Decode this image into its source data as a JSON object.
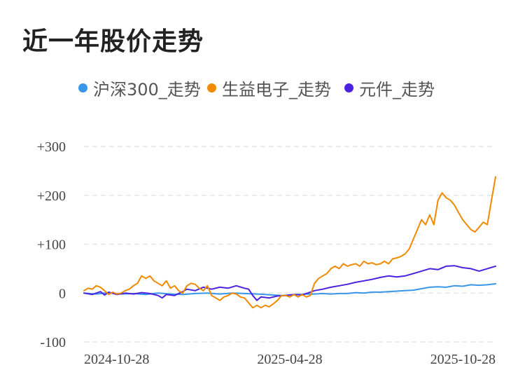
{
  "title": "近一年股价走势",
  "colors": {
    "grid": "#e6e6e6",
    "series_0": "#3a96e8",
    "series_1": "#f08a00",
    "series_2": "#4b22e0"
  },
  "chart_data": {
    "type": "line",
    "title": "近一年股价走势",
    "xlabel": "",
    "ylabel": "",
    "grid": true,
    "legend_position": "top-center",
    "ylim": [
      -100,
      300
    ],
    "xlim": [
      0,
      100
    ],
    "y_ticks": [
      {
        "value": 300,
        "label": "+300"
      },
      {
        "value": 200,
        "label": "+200"
      },
      {
        "value": 100,
        "label": "+100"
      },
      {
        "value": 0,
        "label": "0"
      },
      {
        "value": -100,
        "label": "-100"
      }
    ],
    "x_ticks": [
      {
        "value": 0,
        "label": "2024-10-28"
      },
      {
        "value": 50,
        "label": "2025-04-28"
      },
      {
        "value": 100,
        "label": "2025-10-28"
      }
    ],
    "series": [
      {
        "name": "沪深300_走势",
        "color": "#3a96e8",
        "points": [
          [
            0,
            0
          ],
          [
            3,
            -2
          ],
          [
            6,
            1
          ],
          [
            9,
            -2
          ],
          [
            12,
            -1
          ],
          [
            15,
            -3
          ],
          [
            18,
            0
          ],
          [
            21,
            -2
          ],
          [
            24,
            -3
          ],
          [
            27,
            -1
          ],
          [
            30,
            0
          ],
          [
            33,
            -2
          ],
          [
            36,
            0
          ],
          [
            39,
            -1
          ],
          [
            42,
            -2
          ],
          [
            44,
            -3
          ],
          [
            46,
            -4
          ],
          [
            48,
            -5
          ],
          [
            50,
            -4
          ],
          [
            52,
            -3
          ],
          [
            54,
            -2
          ],
          [
            56,
            -2
          ],
          [
            58,
            -1
          ],
          [
            60,
            -2
          ],
          [
            62,
            -1
          ],
          [
            64,
            -1
          ],
          [
            66,
            1
          ],
          [
            68,
            0
          ],
          [
            70,
            2
          ],
          [
            72,
            2
          ],
          [
            74,
            3
          ],
          [
            76,
            4
          ],
          [
            78,
            5
          ],
          [
            80,
            6
          ],
          [
            82,
            9
          ],
          [
            84,
            12
          ],
          [
            86,
            13
          ],
          [
            88,
            12
          ],
          [
            90,
            15
          ],
          [
            92,
            14
          ],
          [
            94,
            17
          ],
          [
            96,
            16
          ],
          [
            98,
            17
          ],
          [
            100,
            19
          ]
        ]
      },
      {
        "name": "生益电子_走势",
        "color": "#f08a00",
        "points": [
          [
            0,
            5
          ],
          [
            1,
            10
          ],
          [
            2,
            8
          ],
          [
            3,
            15
          ],
          [
            4,
            12
          ],
          [
            5,
            5
          ],
          [
            6,
            -3
          ],
          [
            7,
            2
          ],
          [
            8,
            -2
          ],
          [
            9,
            0
          ],
          [
            10,
            5
          ],
          [
            11,
            8
          ],
          [
            12,
            15
          ],
          [
            13,
            20
          ],
          [
            14,
            35
          ],
          [
            15,
            30
          ],
          [
            16,
            35
          ],
          [
            17,
            25
          ],
          [
            18,
            20
          ],
          [
            19,
            15
          ],
          [
            20,
            25
          ],
          [
            21,
            10
          ],
          [
            22,
            15
          ],
          [
            23,
            5
          ],
          [
            24,
            0
          ],
          [
            25,
            15
          ],
          [
            26,
            20
          ],
          [
            27,
            18
          ],
          [
            28,
            10
          ],
          [
            29,
            5
          ],
          [
            30,
            15
          ],
          [
            31,
            -5
          ],
          [
            32,
            -10
          ],
          [
            33,
            -15
          ],
          [
            34,
            -8
          ],
          [
            35,
            -5
          ],
          [
            36,
            0
          ],
          [
            37,
            -2
          ],
          [
            38,
            -8
          ],
          [
            39,
            -10
          ],
          [
            40,
            -20
          ],
          [
            41,
            -30
          ],
          [
            42,
            -25
          ],
          [
            43,
            -30
          ],
          [
            44,
            -25
          ],
          [
            45,
            -28
          ],
          [
            46,
            -22
          ],
          [
            47,
            -15
          ],
          [
            48,
            -5
          ],
          [
            49,
            -5
          ],
          [
            50,
            -8
          ],
          [
            51,
            -3
          ],
          [
            52,
            -8
          ],
          [
            53,
            -3
          ],
          [
            54,
            -8
          ],
          [
            55,
            -5
          ],
          [
            56,
            20
          ],
          [
            57,
            30
          ],
          [
            58,
            35
          ],
          [
            59,
            40
          ],
          [
            60,
            50
          ],
          [
            61,
            55
          ],
          [
            62,
            50
          ],
          [
            63,
            60
          ],
          [
            64,
            55
          ],
          [
            65,
            58
          ],
          [
            66,
            60
          ],
          [
            67,
            55
          ],
          [
            68,
            65
          ],
          [
            69,
            60
          ],
          [
            70,
            62
          ],
          [
            71,
            58
          ],
          [
            72,
            60
          ],
          [
            73,
            65
          ],
          [
            74,
            60
          ],
          [
            75,
            70
          ],
          [
            76,
            72
          ],
          [
            77,
            75
          ],
          [
            78,
            80
          ],
          [
            79,
            90
          ],
          [
            80,
            110
          ],
          [
            81,
            130
          ],
          [
            82,
            150
          ],
          [
            83,
            140
          ],
          [
            84,
            160
          ],
          [
            85,
            140
          ],
          [
            86,
            190
          ],
          [
            87,
            205
          ],
          [
            88,
            195
          ],
          [
            89,
            190
          ],
          [
            90,
            180
          ],
          [
            91,
            165
          ],
          [
            92,
            150
          ],
          [
            93,
            140
          ],
          [
            94,
            130
          ],
          [
            95,
            125
          ],
          [
            96,
            135
          ],
          [
            97,
            145
          ],
          [
            98,
            140
          ],
          [
            99,
            190
          ],
          [
            100,
            238
          ]
        ]
      },
      {
        "name": "元件_走势",
        "color": "#4b22e0",
        "points": [
          [
            0,
            0
          ],
          [
            2,
            -3
          ],
          [
            4,
            3
          ],
          [
            5,
            -4
          ],
          [
            6,
            2
          ],
          [
            8,
            -3
          ],
          [
            10,
            0
          ],
          [
            12,
            -2
          ],
          [
            14,
            1
          ],
          [
            16,
            -1
          ],
          [
            18,
            -5
          ],
          [
            19,
            -10
          ],
          [
            20,
            -3
          ],
          [
            22,
            -5
          ],
          [
            24,
            3
          ],
          [
            25,
            8
          ],
          [
            27,
            5
          ],
          [
            29,
            12
          ],
          [
            31,
            8
          ],
          [
            33,
            12
          ],
          [
            35,
            10
          ],
          [
            37,
            15
          ],
          [
            39,
            10
          ],
          [
            40,
            8
          ],
          [
            41,
            -5
          ],
          [
            42,
            -15
          ],
          [
            43,
            -8
          ],
          [
            45,
            -10
          ],
          [
            47,
            -6
          ],
          [
            49,
            -5
          ],
          [
            51,
            -3
          ],
          [
            53,
            -4
          ],
          [
            54,
            -1
          ],
          [
            56,
            5
          ],
          [
            58,
            8
          ],
          [
            60,
            12
          ],
          [
            62,
            15
          ],
          [
            64,
            18
          ],
          [
            66,
            22
          ],
          [
            68,
            25
          ],
          [
            70,
            28
          ],
          [
            72,
            32
          ],
          [
            74,
            35
          ],
          [
            76,
            33
          ],
          [
            78,
            35
          ],
          [
            80,
            40
          ],
          [
            82,
            45
          ],
          [
            84,
            50
          ],
          [
            86,
            48
          ],
          [
            88,
            55
          ],
          [
            90,
            56
          ],
          [
            92,
            52
          ],
          [
            94,
            50
          ],
          [
            96,
            45
          ],
          [
            98,
            50
          ],
          [
            100,
            55
          ]
        ]
      }
    ]
  }
}
